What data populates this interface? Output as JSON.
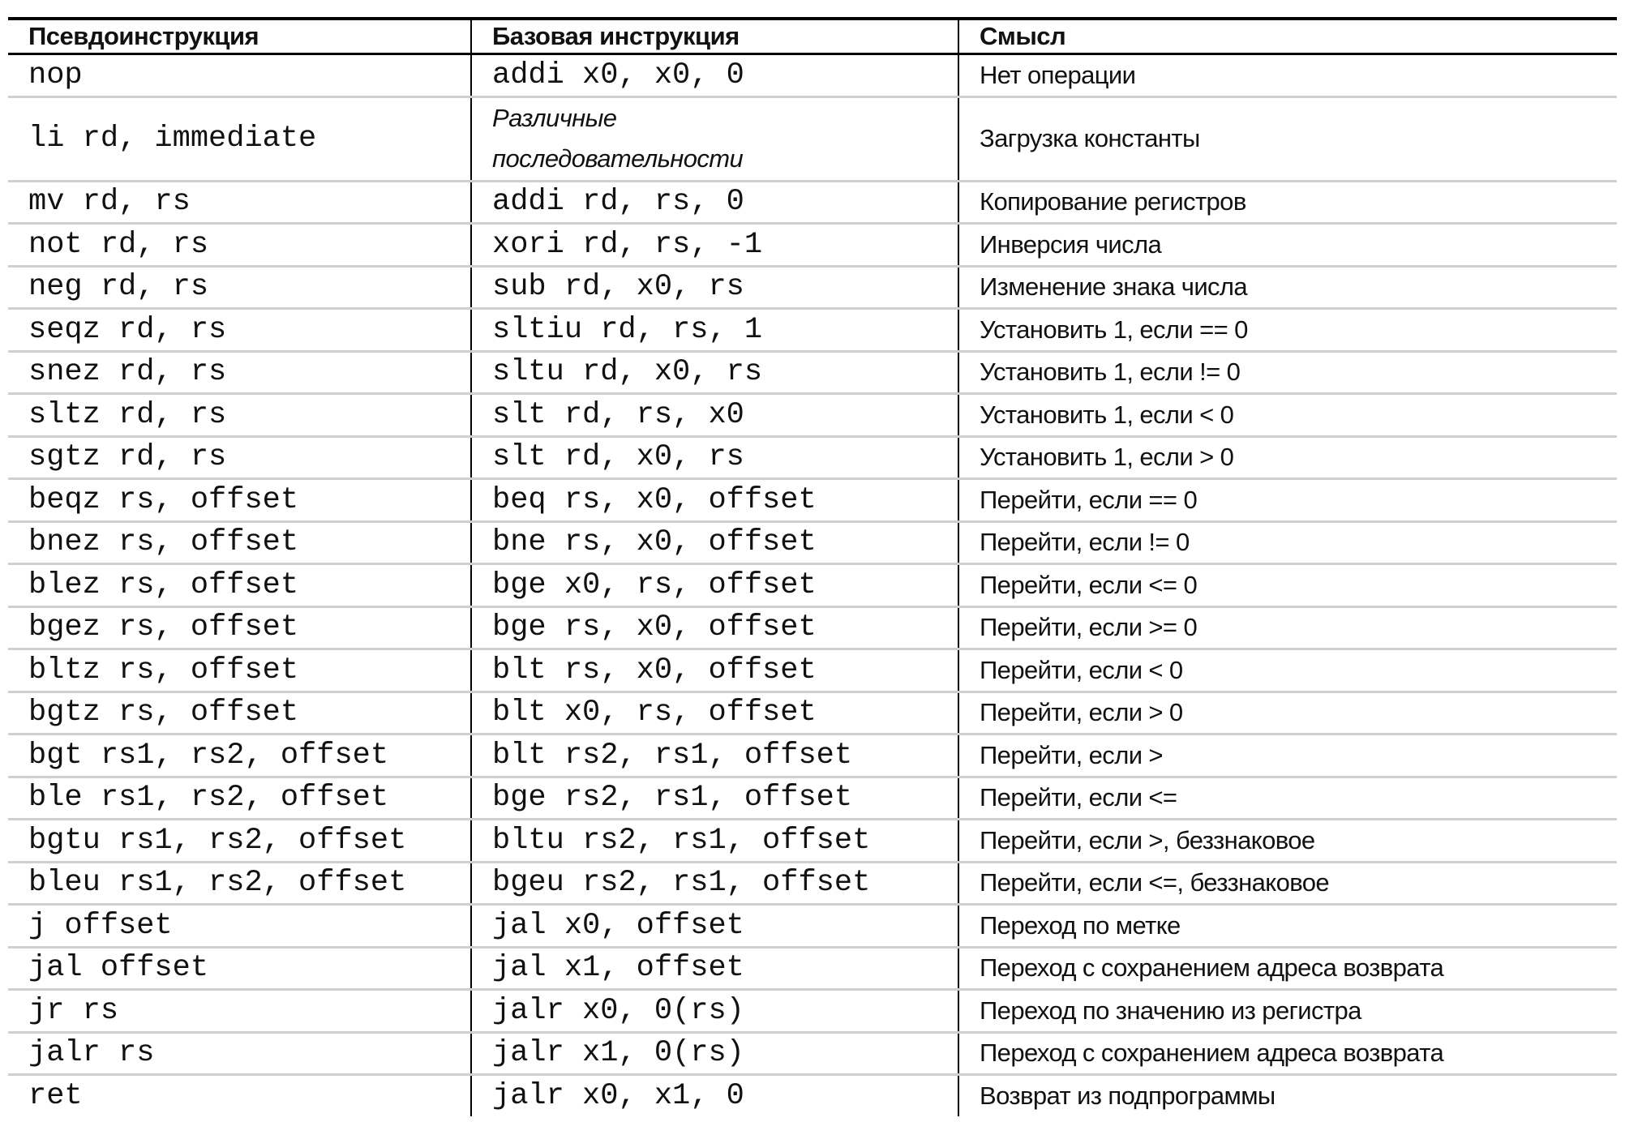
{
  "headers": [
    "Псевдоинструкция",
    "Базовая инструкция",
    "Смысл"
  ],
  "rows": [
    {
      "pseudo": "nop",
      "base": "addi x0, x0, 0",
      "meaning": "Нет операции"
    },
    {
      "pseudo": "li rd, immediate",
      "base": "Различные последовательности",
      "meaning": "Загрузка константы",
      "base_italic": true
    },
    {
      "pseudo": "mv rd, rs",
      "base": "addi rd, rs, 0",
      "meaning": "Копирование регистров"
    },
    {
      "pseudo": "not rd, rs",
      "base": "xori rd, rs, -1",
      "meaning": "Инверсия числа"
    },
    {
      "pseudo": "neg rd, rs",
      "base": "sub rd, x0, rs",
      "meaning": "Изменение знака числа"
    },
    {
      "pseudo": "seqz rd, rs",
      "base": "sltiu rd, rs, 1",
      "meaning": "Установить 1, если == 0"
    },
    {
      "pseudo": "snez rd, rs",
      "base": "sltu rd, x0, rs",
      "meaning": "Установить 1, если != 0"
    },
    {
      "pseudo": "sltz rd, rs",
      "base": "slt rd, rs, x0",
      "meaning": "Установить 1, если < 0"
    },
    {
      "pseudo": "sgtz rd, rs",
      "base": "slt rd, x0, rs",
      "meaning": "Установить 1, если > 0"
    },
    {
      "pseudo": "beqz rs, offset",
      "base": "beq rs, x0, offset",
      "meaning": "Перейти, если == 0"
    },
    {
      "pseudo": "bnez rs, offset",
      "base": "bne rs, x0, offset",
      "meaning": "Перейти, если != 0"
    },
    {
      "pseudo": "blez rs, offset",
      "base": "bge x0, rs, offset",
      "meaning": "Перейти, если <= 0"
    },
    {
      "pseudo": "bgez rs, offset",
      "base": "bge rs, x0, offset",
      "meaning": "Перейти, если >= 0"
    },
    {
      "pseudo": "bltz rs, offset",
      "base": "blt rs, x0, offset",
      "meaning": "Перейти, если < 0"
    },
    {
      "pseudo": "bgtz rs, offset",
      "base": "blt x0, rs, offset",
      "meaning": "Перейти, если > 0"
    },
    {
      "pseudo": "bgt rs1, rs2, offset",
      "base": "blt rs2, rs1, offset",
      "meaning": "Перейти, если >"
    },
    {
      "pseudo": "ble rs1, rs2, offset",
      "base": "bge rs2, rs1, offset",
      "meaning": "Перейти, если <="
    },
    {
      "pseudo": "bgtu rs1, rs2, offset",
      "base": "bltu rs2, rs1, offset",
      "meaning": "Перейти, если >, беззнаковое"
    },
    {
      "pseudo": "bleu rs1, rs2, offset",
      "base": "bgeu rs2, rs1, offset",
      "meaning": "Перейти, если <=, беззнаковое"
    },
    {
      "pseudo": "j offset",
      "base": "jal x0, offset",
      "meaning": "Переход по метке"
    },
    {
      "pseudo": "jal offset",
      "base": "jal x1, offset",
      "meaning": "Переход с сохранением адреса возврата"
    },
    {
      "pseudo": "jr rs",
      "base": "jalr x0, 0(rs)",
      "meaning": "Переход по значению из регистра"
    },
    {
      "pseudo": "jalr rs",
      "base": "jalr x1, 0(rs)",
      "meaning": "Переход с сохранением адреса возврата"
    },
    {
      "pseudo": "ret",
      "base": "jalr x0, x1, 0",
      "meaning": "Возврат из подпрограммы"
    }
  ]
}
